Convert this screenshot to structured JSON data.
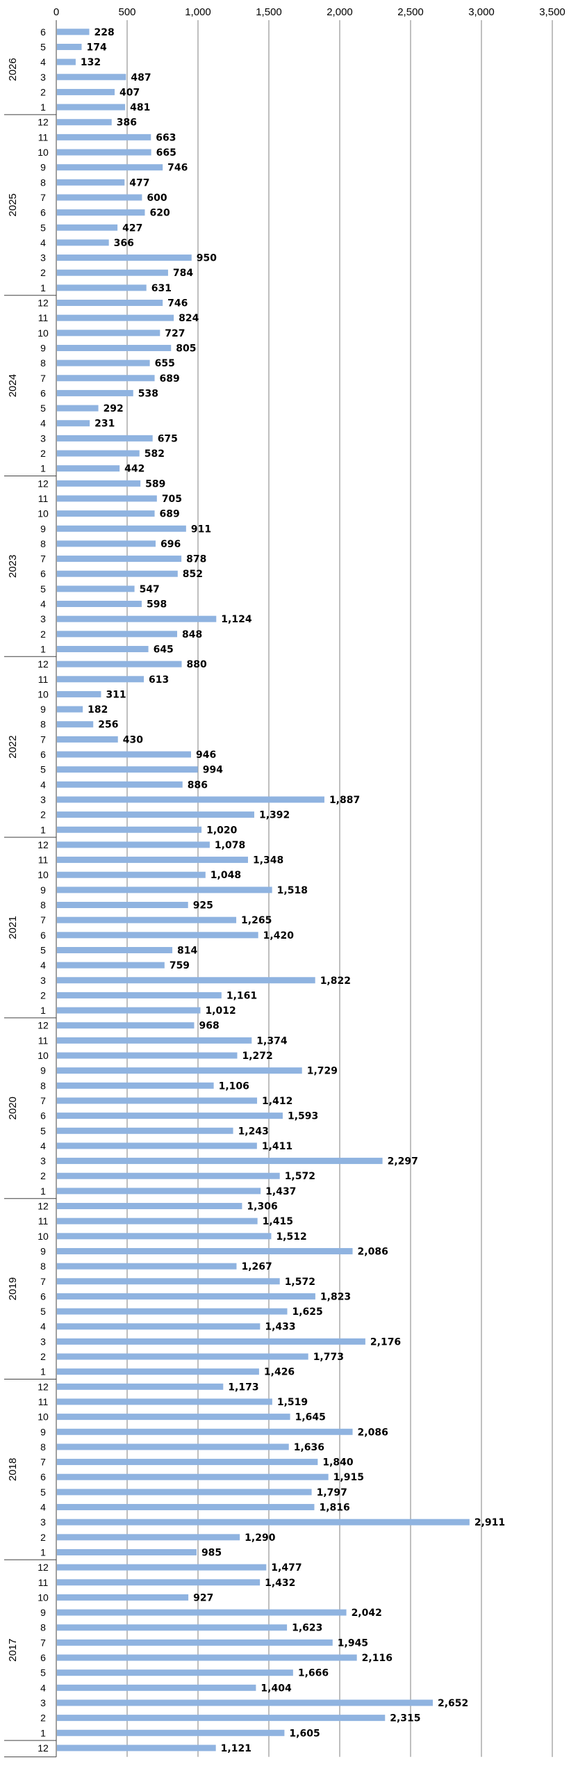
{
  "chart_data": {
    "type": "bar",
    "orientation": "horizontal",
    "xlim": [
      0,
      3500
    ],
    "x_ticks": [
      "0",
      "500",
      "1,000",
      "1,500",
      "2,000",
      "2,500",
      "3,000",
      "3,500"
    ],
    "x_tick_values": [
      0,
      500,
      1000,
      1500,
      2000,
      2500,
      3000,
      3500
    ],
    "grid": "vertical",
    "bar_color": "#8fb3e0",
    "years": [
      {
        "year": "2026",
        "rows": [
          {
            "month": "6",
            "value": 228,
            "label": "228"
          },
          {
            "month": "5",
            "value": 174,
            "label": "174"
          },
          {
            "month": "4",
            "value": 132,
            "label": "132"
          },
          {
            "month": "3",
            "value": 487,
            "label": "487"
          },
          {
            "month": "2",
            "value": 407,
            "label": "407"
          },
          {
            "month": "1",
            "value": 481,
            "label": "481"
          }
        ]
      },
      {
        "year": "2025",
        "rows": [
          {
            "month": "12",
            "value": 386,
            "label": "386"
          },
          {
            "month": "11",
            "value": 663,
            "label": "663"
          },
          {
            "month": "10",
            "value": 665,
            "label": "665"
          },
          {
            "month": "9",
            "value": 746,
            "label": "746"
          },
          {
            "month": "8",
            "value": 477,
            "label": "477"
          },
          {
            "month": "7",
            "value": 600,
            "label": "600"
          },
          {
            "month": "6",
            "value": 620,
            "label": "620"
          },
          {
            "month": "5",
            "value": 427,
            "label": "427"
          },
          {
            "month": "4",
            "value": 366,
            "label": "366"
          },
          {
            "month": "3",
            "value": 950,
            "label": "950"
          },
          {
            "month": "2",
            "value": 784,
            "label": "784"
          },
          {
            "month": "1",
            "value": 631,
            "label": "631"
          }
        ]
      },
      {
        "year": "2024",
        "rows": [
          {
            "month": "12",
            "value": 746,
            "label": "746"
          },
          {
            "month": "11",
            "value": 824,
            "label": "824"
          },
          {
            "month": "10",
            "value": 727,
            "label": "727"
          },
          {
            "month": "9",
            "value": 805,
            "label": "805"
          },
          {
            "month": "8",
            "value": 655,
            "label": "655"
          },
          {
            "month": "7",
            "value": 689,
            "label": "689"
          },
          {
            "month": "6",
            "value": 538,
            "label": "538"
          },
          {
            "month": "5",
            "value": 292,
            "label": "292"
          },
          {
            "month": "4",
            "value": 231,
            "label": "231"
          },
          {
            "month": "3",
            "value": 675,
            "label": "675"
          },
          {
            "month": "2",
            "value": 582,
            "label": "582"
          },
          {
            "month": "1",
            "value": 442,
            "label": "442"
          }
        ]
      },
      {
        "year": "2023",
        "rows": [
          {
            "month": "12",
            "value": 589,
            "label": "589"
          },
          {
            "month": "11",
            "value": 705,
            "label": "705"
          },
          {
            "month": "10",
            "value": 689,
            "label": "689"
          },
          {
            "month": "9",
            "value": 911,
            "label": "911"
          },
          {
            "month": "8",
            "value": 696,
            "label": "696"
          },
          {
            "month": "7",
            "value": 878,
            "label": "878"
          },
          {
            "month": "6",
            "value": 852,
            "label": "852"
          },
          {
            "month": "5",
            "value": 547,
            "label": "547"
          },
          {
            "month": "4",
            "value": 598,
            "label": "598"
          },
          {
            "month": "3",
            "value": 1124,
            "label": "1,124"
          },
          {
            "month": "2",
            "value": 848,
            "label": "848"
          },
          {
            "month": "1",
            "value": 645,
            "label": "645"
          }
        ]
      },
      {
        "year": "2022",
        "rows": [
          {
            "month": "12",
            "value": 880,
            "label": "880"
          },
          {
            "month": "11",
            "value": 613,
            "label": "613"
          },
          {
            "month": "10",
            "value": 311,
            "label": "311"
          },
          {
            "month": "9",
            "value": 182,
            "label": "182"
          },
          {
            "month": "8",
            "value": 256,
            "label": "256"
          },
          {
            "month": "7",
            "value": 430,
            "label": "430"
          },
          {
            "month": "6",
            "value": 946,
            "label": "946"
          },
          {
            "month": "5",
            "value": 994,
            "label": "994"
          },
          {
            "month": "4",
            "value": 886,
            "label": "886"
          },
          {
            "month": "3",
            "value": 1887,
            "label": "1,887"
          },
          {
            "month": "2",
            "value": 1392,
            "label": "1,392"
          },
          {
            "month": "1",
            "value": 1020,
            "label": "1,020"
          }
        ]
      },
      {
        "year": "2021",
        "rows": [
          {
            "month": "12",
            "value": 1078,
            "label": "1,078"
          },
          {
            "month": "11",
            "value": 1348,
            "label": "1,348"
          },
          {
            "month": "10",
            "value": 1048,
            "label": "1,048"
          },
          {
            "month": "9",
            "value": 1518,
            "label": "1,518"
          },
          {
            "month": "8",
            "value": 925,
            "label": "925"
          },
          {
            "month": "7",
            "value": 1265,
            "label": "1,265"
          },
          {
            "month": "6",
            "value": 1420,
            "label": "1,420"
          },
          {
            "month": "5",
            "value": 814,
            "label": "814"
          },
          {
            "month": "4",
            "value": 759,
            "label": "759"
          },
          {
            "month": "3",
            "value": 1822,
            "label": "1,822"
          },
          {
            "month": "2",
            "value": 1161,
            "label": "1,161"
          },
          {
            "month": "1",
            "value": 1012,
            "label": "1,012"
          }
        ]
      },
      {
        "year": "2020",
        "rows": [
          {
            "month": "12",
            "value": 968,
            "label": "968"
          },
          {
            "month": "11",
            "value": 1374,
            "label": "1,374"
          },
          {
            "month": "10",
            "value": 1272,
            "label": "1,272"
          },
          {
            "month": "9",
            "value": 1729,
            "label": "1,729"
          },
          {
            "month": "8",
            "value": 1106,
            "label": "1,106"
          },
          {
            "month": "7",
            "value": 1412,
            "label": "1,412"
          },
          {
            "month": "6",
            "value": 1593,
            "label": "1,593"
          },
          {
            "month": "5",
            "value": 1243,
            "label": "1,243"
          },
          {
            "month": "4",
            "value": 1411,
            "label": "1,411"
          },
          {
            "month": "3",
            "value": 2297,
            "label": "2,297"
          },
          {
            "month": "2",
            "value": 1572,
            "label": "1,572"
          },
          {
            "month": "1",
            "value": 1437,
            "label": "1,437"
          }
        ]
      },
      {
        "year": "2019",
        "rows": [
          {
            "month": "12",
            "value": 1306,
            "label": "1,306"
          },
          {
            "month": "11",
            "value": 1415,
            "label": "1,415"
          },
          {
            "month": "10",
            "value": 1512,
            "label": "1,512"
          },
          {
            "month": "9",
            "value": 2086,
            "label": "2,086"
          },
          {
            "month": "8",
            "value": 1267,
            "label": "1,267"
          },
          {
            "month": "7",
            "value": 1572,
            "label": "1,572"
          },
          {
            "month": "6",
            "value": 1823,
            "label": "1,823"
          },
          {
            "month": "5",
            "value": 1625,
            "label": "1,625"
          },
          {
            "month": "4",
            "value": 1433,
            "label": "1,433"
          },
          {
            "month": "3",
            "value": 2176,
            "label": "2,176"
          },
          {
            "month": "2",
            "value": 1773,
            "label": "1,773"
          },
          {
            "month": "1",
            "value": 1426,
            "label": "1,426"
          }
        ]
      },
      {
        "year": "2018",
        "rows": [
          {
            "month": "12",
            "value": 1173,
            "label": "1,173"
          },
          {
            "month": "11",
            "value": 1519,
            "label": "1,519"
          },
          {
            "month": "10",
            "value": 1645,
            "label": "1,645"
          },
          {
            "month": "9",
            "value": 2086,
            "label": "2,086"
          },
          {
            "month": "8",
            "value": 1636,
            "label": "1,636"
          },
          {
            "month": "7",
            "value": 1840,
            "label": "1,840"
          },
          {
            "month": "6",
            "value": 1915,
            "label": "1,915"
          },
          {
            "month": "5",
            "value": 1797,
            "label": "1,797"
          },
          {
            "month": "4",
            "value": 1816,
            "label": "1,816"
          },
          {
            "month": "3",
            "value": 2911,
            "label": "2,911"
          },
          {
            "month": "2",
            "value": 1290,
            "label": "1,290"
          },
          {
            "month": "1",
            "value": 985,
            "label": "985"
          }
        ]
      },
      {
        "year": "2017",
        "rows": [
          {
            "month": "12",
            "value": 1477,
            "label": "1,477"
          },
          {
            "month": "11",
            "value": 1432,
            "label": "1,432"
          },
          {
            "month": "10",
            "value": 927,
            "label": "927"
          },
          {
            "month": "9",
            "value": 2042,
            "label": "2,042"
          },
          {
            "month": "8",
            "value": 1623,
            "label": "1,623"
          },
          {
            "month": "7",
            "value": 1945,
            "label": "1,945"
          },
          {
            "month": "6",
            "value": 2116,
            "label": "2,116"
          },
          {
            "month": "5",
            "value": 1666,
            "label": "1,666"
          },
          {
            "month": "4",
            "value": 1404,
            "label": "1,404"
          },
          {
            "month": "3",
            "value": 2652,
            "label": "2,652"
          },
          {
            "month": "2",
            "value": 2315,
            "label": "2,315"
          },
          {
            "month": "1",
            "value": 1605,
            "label": "1,605"
          }
        ]
      },
      {
        "year": "",
        "rows": [
          {
            "month": "12",
            "value": 1121,
            "label": "1,121"
          }
        ]
      }
    ]
  }
}
